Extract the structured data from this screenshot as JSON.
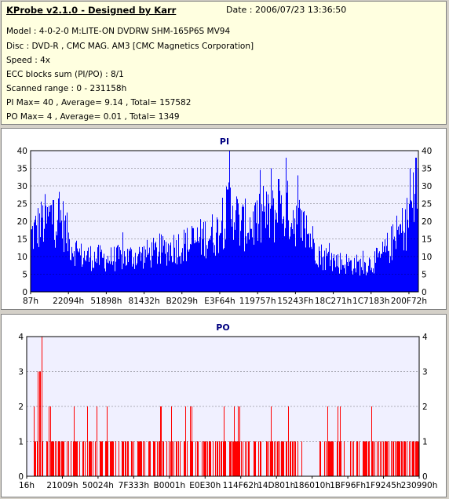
{
  "header": {
    "title": "KProbe v2.1.0 - Designed by Karr",
    "date": "Date : 2006/07/23 13:36:50"
  },
  "info": {
    "model": "Model : 4-0-2-0 M:LITE-ON DVDRW SHM-165P6S MV94",
    "disc": "Disc : DVD-R , CMC MAG. AM3 [CMC Magnetics Corporation]",
    "speed": "Speed : 4x",
    "ecc": "ECC blocks sum (PI/PO) : 8/1",
    "range": "Scanned range : 0 - 231158h",
    "pi_stats": "PI Max= 40 , Average= 9.14 , Total= 157582",
    "po_stats": "PO Max= 4 , Average= 0.01 , Total= 1349"
  },
  "colors": {
    "pi_fill": "#0000ff",
    "po_fill": "#ff0000",
    "plot_bg": "#f0f0ff",
    "info_bg": "#ffffe0",
    "title": "#000080"
  },
  "chart_data": [
    {
      "type": "bar",
      "title": "PI",
      "ylim": [
        0,
        40
      ],
      "yticks": [
        0,
        5,
        10,
        15,
        20,
        25,
        30,
        35,
        40
      ],
      "xlim": [
        0,
        231158
      ],
      "xtick_labels": [
        "87h",
        "22094h",
        "51898h",
        "81432h",
        "B2029h",
        "E3F64h",
        "119757h",
        "15243Fh",
        "18C271h",
        "1C7183h",
        "200F72h"
      ],
      "grid": true,
      "profile": [
        [
          0,
          17
        ],
        [
          0.02,
          20
        ],
        [
          0.05,
          23
        ],
        [
          0.08,
          22
        ],
        [
          0.1,
          15
        ],
        [
          0.13,
          11
        ],
        [
          0.2,
          10
        ],
        [
          0.28,
          11
        ],
        [
          0.32,
          12
        ],
        [
          0.38,
          14
        ],
        [
          0.42,
          15
        ],
        [
          0.45,
          17
        ],
        [
          0.48,
          18
        ],
        [
          0.5,
          22
        ],
        [
          0.52,
          27
        ],
        [
          0.54,
          20
        ],
        [
          0.58,
          21
        ],
        [
          0.62,
          23
        ],
        [
          0.66,
          25
        ],
        [
          0.69,
          22
        ],
        [
          0.72,
          17
        ],
        [
          0.75,
          11
        ],
        [
          0.8,
          9
        ],
        [
          0.86,
          8
        ],
        [
          0.9,
          10
        ],
        [
          0.94,
          16
        ],
        [
          0.97,
          21
        ],
        [
          0.99,
          28
        ],
        [
          1,
          30
        ]
      ],
      "peaks": [
        [
          0.029,
          21
        ],
        [
          0.043,
          24
        ],
        [
          0.058,
          26
        ],
        [
          0.512,
          40
        ],
        [
          0.51,
          31
        ],
        [
          0.508,
          29
        ],
        [
          0.62,
          35
        ],
        [
          0.66,
          38
        ],
        [
          0.69,
          33
        ],
        [
          0.6,
          30
        ],
        [
          0.64,
          32
        ],
        [
          0.98,
          35
        ],
        [
          0.995,
          38
        ]
      ]
    },
    {
      "type": "bar",
      "title": "PO",
      "ylim": [
        0,
        4
      ],
      "yticks": [
        0,
        1,
        2,
        3,
        4
      ],
      "xlim": [
        0,
        231158
      ],
      "xtick_labels": [
        "16h",
        "21009h",
        "50024h",
        "7F333h",
        "B0001h",
        "E0E30h",
        "114F62h",
        "14D801h",
        "186010h",
        "1BF96Fh",
        "1F9245h",
        "230990h"
      ],
      "grid": true,
      "max_value": 4,
      "peaks": [
        [
          0.028,
          3
        ],
        [
          0.032,
          3
        ],
        [
          0.038,
          4
        ],
        [
          0.034,
          3
        ],
        [
          0.06,
          2
        ]
      ]
    }
  ]
}
